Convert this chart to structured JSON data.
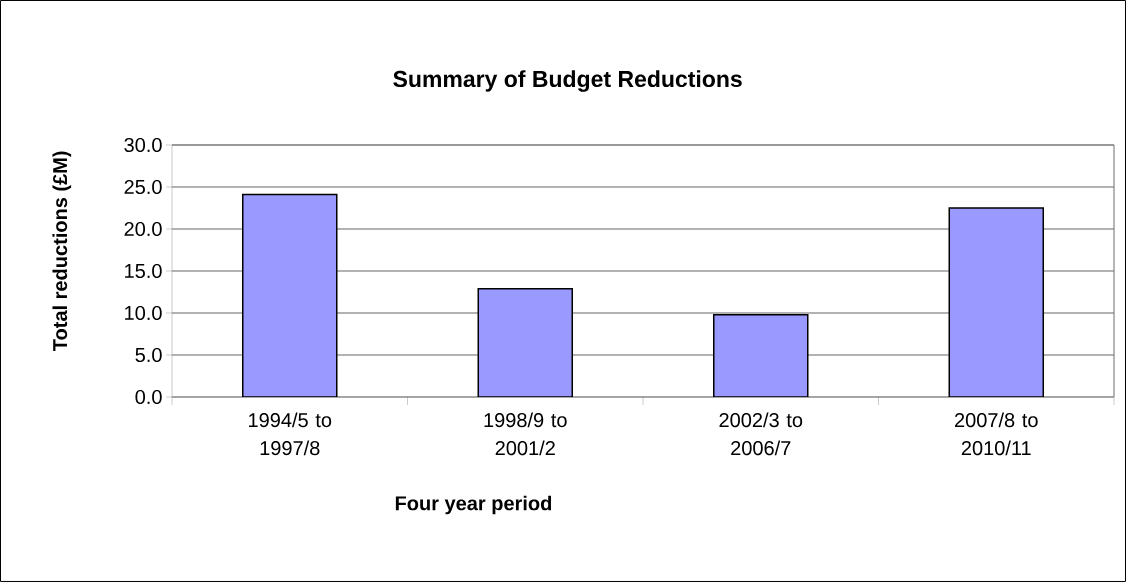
{
  "chart_data": {
    "type": "bar",
    "title": "Summary of Budget Reductions",
    "xlabel": "Four year period",
    "ylabel": "Total reductions (£M)",
    "categories": [
      "1994/5 to 1997/8",
      "1998/9 to 2001/2",
      "2002/3 to 2006/7",
      "2007/8 to 2010/11"
    ],
    "values": [
      24.1,
      12.9,
      9.8,
      22.5
    ],
    "color": "#9999ff",
    "ylim": [
      0,
      30
    ],
    "yticks": [
      {
        "value": 0,
        "label": "0.0"
      },
      {
        "value": 5,
        "label": "5.0"
      },
      {
        "value": 10,
        "label": "10.0"
      },
      {
        "value": 15,
        "label": "15.0"
      },
      {
        "value": 20,
        "label": "20.0"
      },
      {
        "value": 25,
        "label": "25.0"
      },
      {
        "value": 30,
        "label": "30.0"
      }
    ],
    "grid": "y"
  }
}
